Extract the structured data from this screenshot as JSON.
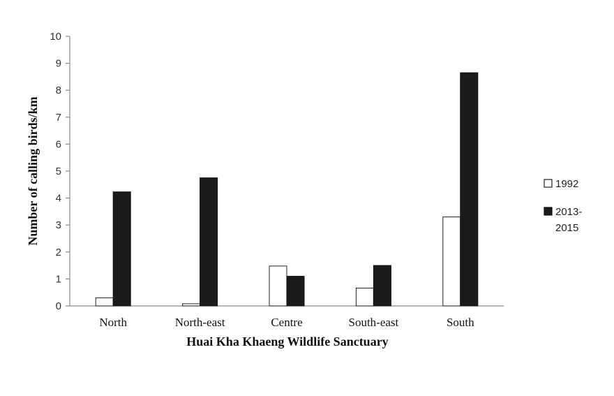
{
  "chart_data": {
    "type": "bar",
    "title": "",
    "xlabel": "Huai Kha Khaeng Wildlife Sanctuary",
    "ylabel": "Number of calling birds/km",
    "categories": [
      "North",
      "North-east",
      "Centre",
      "South-east",
      "South"
    ],
    "series": [
      {
        "name": "1992",
        "values": [
          0.3,
          0.08,
          1.48,
          0.66,
          3.3
        ],
        "fill": "#ffffff",
        "stroke": "#222222"
      },
      {
        "name": "2013-2015",
        "name_lines": [
          "2013-",
          "2015"
        ],
        "values": [
          4.23,
          4.75,
          1.1,
          1.5,
          8.65
        ],
        "fill": "#1a1a1a",
        "stroke": "#111111"
      }
    ],
    "ylim": [
      0,
      10
    ],
    "yticks": [
      0,
      1,
      2,
      3,
      4,
      5,
      6,
      7,
      8,
      9,
      10
    ],
    "grid": false,
    "legend_position": "right"
  }
}
